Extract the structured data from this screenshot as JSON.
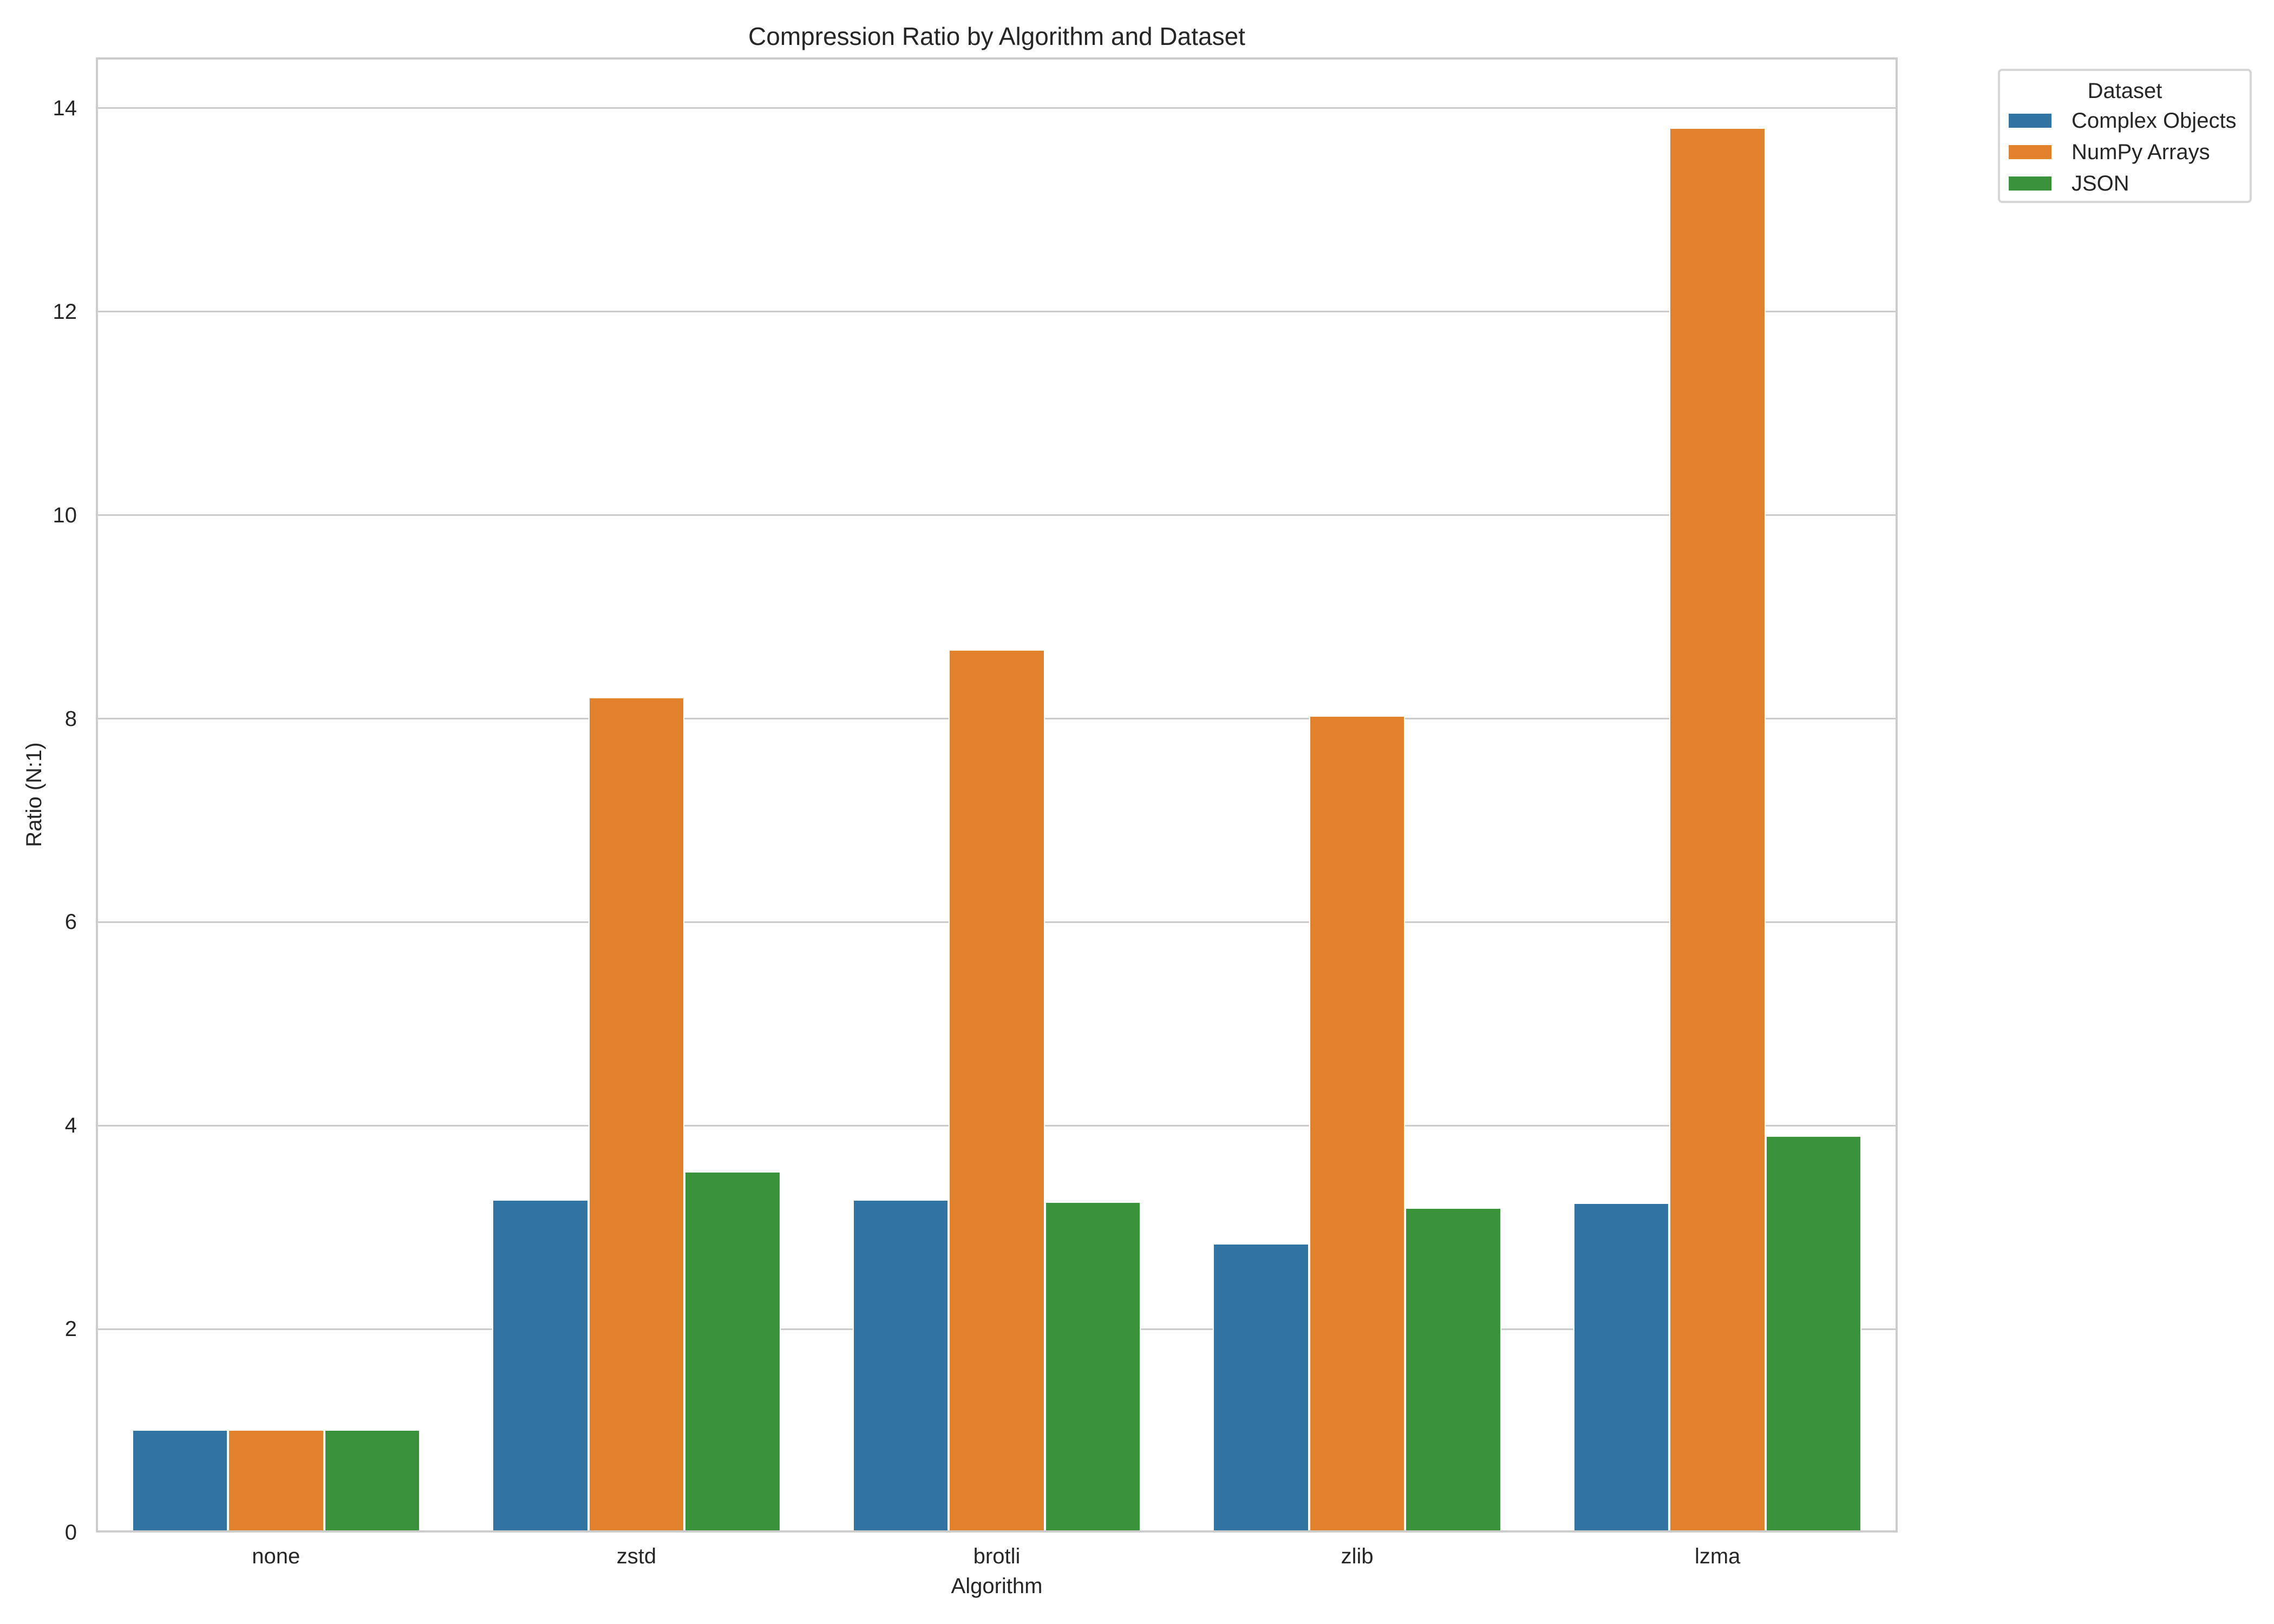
{
  "chart_data": {
    "type": "bar",
    "title": "Compression Ratio by Algorithm and Dataset",
    "xlabel": "Algorithm",
    "ylabel": "Ratio (N:1)",
    "ylim": [
      0,
      14.5
    ],
    "yticks": [
      0,
      2,
      4,
      6,
      8,
      10,
      12,
      14
    ],
    "grid": true,
    "legend_position": "outside upper right",
    "legend_title": "Dataset",
    "categories": [
      "none",
      "zstd",
      "brotli",
      "zlib",
      "lzma"
    ],
    "series": [
      {
        "name": "Complex Objects",
        "color": "#3274a1",
        "values": [
          1.0,
          3.26,
          3.26,
          2.83,
          3.23
        ]
      },
      {
        "name": "NumPy Arrays",
        "color": "#e1812c",
        "values": [
          1.0,
          8.2,
          8.67,
          8.02,
          13.8
        ]
      },
      {
        "name": "JSON",
        "color": "#3a923a",
        "values": [
          1.0,
          3.54,
          3.24,
          3.18,
          3.89
        ]
      }
    ]
  },
  "colors": {
    "grid": "#cccccc",
    "spine": "#cccccc",
    "text": "#262626",
    "background": "#ffffff"
  }
}
